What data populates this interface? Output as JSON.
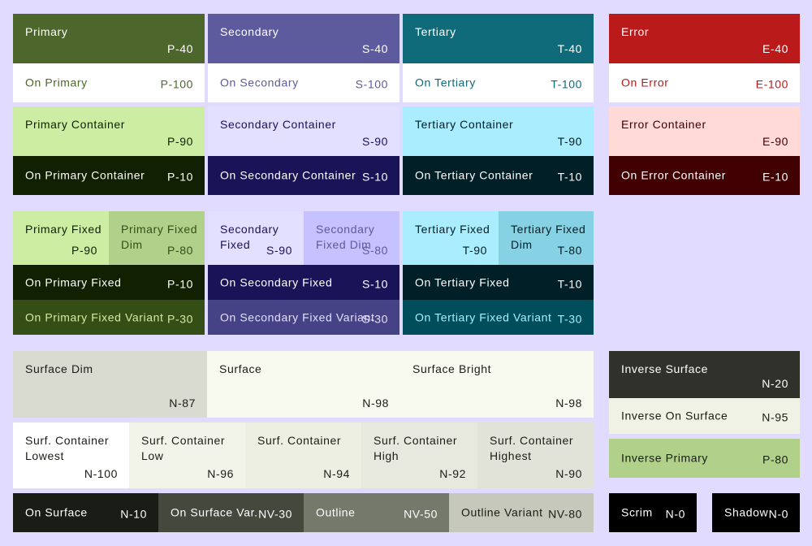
{
  "swatches": {
    "primary": {
      "name": "Primary",
      "tone": "P-40",
      "bg": "#4C662B",
      "fg": "#FFFFFF"
    },
    "on_primary": {
      "name": "On Primary",
      "tone": "P-100",
      "bg": "#FFFFFF",
      "fg": "#4C662B"
    },
    "primary_container": {
      "name": "Primary Container",
      "tone": "P-90",
      "bg": "#CDEDA3",
      "fg": "#102000"
    },
    "on_primary_container": {
      "name": "On Primary Container",
      "tone": "P-10",
      "bg": "#102000",
      "fg": "#FFFFFF"
    },
    "secondary": {
      "name": "Secondary",
      "tone": "S-40",
      "bg": "#5D5B9E",
      "fg": "#FFFFFF"
    },
    "on_secondary": {
      "name": "On Secondary",
      "tone": "S-100",
      "bg": "#FFFFFF",
      "fg": "#5D5B9E"
    },
    "secondary_container": {
      "name": "Secondary Container",
      "tone": "S-90",
      "bg": "#E3DFFF",
      "fg": "#181457"
    },
    "on_secondary_container": {
      "name": "On Secondary Container",
      "tone": "S-10",
      "bg": "#181457",
      "fg": "#FFFFFF"
    },
    "tertiary": {
      "name": "Tertiary",
      "tone": "T-40",
      "bg": "#0F6A7A",
      "fg": "#FFFFFF"
    },
    "on_tertiary": {
      "name": "On Tertiary",
      "tone": "T-100",
      "bg": "#FFFFFF",
      "fg": "#0F6A7A"
    },
    "tertiary_container": {
      "name": "Tertiary Container",
      "tone": "T-90",
      "bg": "#A9EDFF",
      "fg": "#001F26"
    },
    "on_tertiary_container": {
      "name": "On Tertiary Container",
      "tone": "T-10",
      "bg": "#001F26",
      "fg": "#FFFFFF"
    },
    "error": {
      "name": "Error",
      "tone": "E-40",
      "bg": "#BA1A1A",
      "fg": "#FFFFFF"
    },
    "on_error": {
      "name": "On Error",
      "tone": "E-100",
      "bg": "#FFFFFF",
      "fg": "#BA1A1A"
    },
    "error_container": {
      "name": "Error Container",
      "tone": "E-90",
      "bg": "#FFDAD6",
      "fg": "#410002"
    },
    "on_error_container": {
      "name": "On Error Container",
      "tone": "E-10",
      "bg": "#410002",
      "fg": "#FFFFFF"
    },
    "primary_fixed": {
      "name": "Primary Fixed",
      "tone": "P-90",
      "bg": "#CDEDA3",
      "fg": "#102000"
    },
    "primary_fixed_dim": {
      "name": "Primary Fixed\nDim",
      "tone": "P-80",
      "bg": "#B1D18A",
      "fg": "#354E16"
    },
    "on_primary_fixed": {
      "name": "On Primary Fixed",
      "tone": "P-10",
      "bg": "#102000",
      "fg": "#FFFFFF"
    },
    "on_primary_fixed_variant": {
      "name": "On Primary Fixed Variant",
      "tone": "P-30",
      "bg": "#354E16",
      "fg": "#CDEDA3"
    },
    "secondary_fixed": {
      "name": "Secondary\nFixed",
      "tone": "S-90",
      "bg": "#E3DFFF",
      "fg": "#181457"
    },
    "secondary_fixed_dim": {
      "name": "Secondary\nFixed Dim",
      "tone": "S-80",
      "bg": "#C6C2FF",
      "fg": "#5D5B9E"
    },
    "on_secondary_fixed": {
      "name": "On Secondary Fixed",
      "tone": "S-10",
      "bg": "#181457",
      "fg": "#FFFFFF"
    },
    "on_secondary_fixed_variant": {
      "name": "On Secondary Fixed Variant",
      "tone": "S-30",
      "bg": "#454386",
      "fg": "#E3DFFF"
    },
    "tertiary_fixed": {
      "name": "Tertiary Fixed",
      "tone": "T-90",
      "bg": "#A9EDFF",
      "fg": "#001F26"
    },
    "tertiary_fixed_dim": {
      "name": "Tertiary Fixed\nDim",
      "tone": "T-80",
      "bg": "#86D1E3",
      "fg": "#001F26"
    },
    "on_tertiary_fixed": {
      "name": "On Tertiary Fixed",
      "tone": "T-10",
      "bg": "#001F26",
      "fg": "#FFFFFF"
    },
    "on_tertiary_fixed_variant": {
      "name": "On Tertiary Fixed Variant",
      "tone": "T-30",
      "bg": "#004E5C",
      "fg": "#A9EDFF"
    },
    "surface_dim": {
      "name": "Surface Dim",
      "tone": "N-87",
      "bg": "#DADBD0",
      "fg": "#1A1C16"
    },
    "surface": {
      "name": "Surface",
      "tone": "N-98",
      "bg": "#F9FAEF",
      "fg": "#1A1C16"
    },
    "surface_bright": {
      "name": "Surface Bright",
      "tone": "N-98",
      "bg": "#F9FAEF",
      "fg": "#1A1C16"
    },
    "surf_container_lowest": {
      "name": "Surf. Container\nLowest",
      "tone": "N-100",
      "bg": "#FFFFFF",
      "fg": "#1A1C16"
    },
    "surf_container_low": {
      "name": "Surf. Container\nLow",
      "tone": "N-96",
      "bg": "#F3F4E9",
      "fg": "#1A1C16"
    },
    "surf_container": {
      "name": "Surf. Container",
      "tone": "N-94",
      "bg": "#EEEFE3",
      "fg": "#1A1C16"
    },
    "surf_container_high": {
      "name": "Surf. Container\nHigh",
      "tone": "N-92",
      "bg": "#E8E9DE",
      "fg": "#1A1C16"
    },
    "surf_container_highest": {
      "name": "Surf. Container\nHighest",
      "tone": "N-90",
      "bg": "#E2E3D8",
      "fg": "#1A1C16"
    },
    "on_surface": {
      "name": "On Surface",
      "tone": "N-10",
      "bg": "#1A1C16",
      "fg": "#FFFFFF"
    },
    "on_surface_var": {
      "name": "On Surface Var.",
      "tone": "NV-30",
      "bg": "#44483D",
      "fg": "#FFFFFF"
    },
    "outline": {
      "name": "Outline",
      "tone": "NV-50",
      "bg": "#75796C",
      "fg": "#FFFFFF"
    },
    "outline_variant": {
      "name": "Outline Variant",
      "tone": "NV-80",
      "bg": "#C5C8BA",
      "fg": "#1A1C16"
    },
    "inverse_surface": {
      "name": "Inverse Surface",
      "tone": "N-20",
      "bg": "#2F312A",
      "fg": "#FFFFFF"
    },
    "inverse_on_surface": {
      "name": "Inverse On Surface",
      "tone": "N-95",
      "bg": "#F1F2E6",
      "fg": "#1A1C16"
    },
    "inverse_primary": {
      "name": "Inverse Primary",
      "tone": "P-80",
      "bg": "#B1D18A",
      "fg": "#1A1C16"
    },
    "scrim": {
      "name": "Scrim",
      "tone": "N-0",
      "bg": "#000000",
      "fg": "#FFFFFF"
    },
    "shadow": {
      "name": "Shadow",
      "tone": "N-0",
      "bg": "#000000",
      "fg": "#FFFFFF"
    }
  }
}
